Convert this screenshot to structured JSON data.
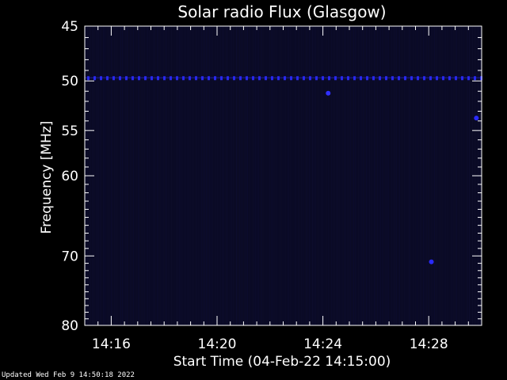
{
  "chart_data": {
    "type": "heatmap",
    "title": "Solar radio Flux (Glasgow)",
    "xlabel": "Start Time (04-Feb-22 14:15:00)",
    "ylabel": "Frequency [MHz]",
    "x_range_minutes": [
      0,
      15
    ],
    "x_ticks": [
      {
        "minute": 1,
        "label": "14:16"
      },
      {
        "minute": 5,
        "label": "14:20"
      },
      {
        "minute": 9,
        "label": "14:24"
      },
      {
        "minute": 13,
        "label": "14:28"
      }
    ],
    "y_range_mhz": [
      45,
      80
    ],
    "y_scale": "log",
    "y_ticks": [
      {
        "value": 45,
        "label": "45"
      },
      {
        "value": 50,
        "label": "50"
      },
      {
        "value": 55,
        "label": "55"
      },
      {
        "value": 60,
        "label": "60"
      },
      {
        "value": 70,
        "label": "70"
      },
      {
        "value": 80,
        "label": "80"
      }
    ],
    "y_minor_ticks": [
      46,
      47,
      48,
      49,
      51,
      52,
      53,
      54,
      56,
      57,
      58,
      59,
      61,
      62,
      63,
      64,
      65,
      66,
      67,
      68,
      69,
      71,
      72,
      73,
      74,
      75,
      76,
      77,
      78,
      79
    ],
    "background_color": "#0a0a24",
    "interference_band": {
      "frequency_mhz": 49.7,
      "color": "#2828ee"
    },
    "bright_spots": [
      {
        "minute": 9.2,
        "frequency_mhz": 51.2,
        "color": "#3030ff"
      },
      {
        "minute": 13.1,
        "frequency_mhz": 70.8,
        "color": "#2a2aff"
      },
      {
        "minute": 14.8,
        "frequency_mhz": 53.7,
        "color": "#2a2aff"
      }
    ]
  },
  "footer": {
    "updated_text": "Updated Wed Feb  9 14:50:18 2022"
  }
}
